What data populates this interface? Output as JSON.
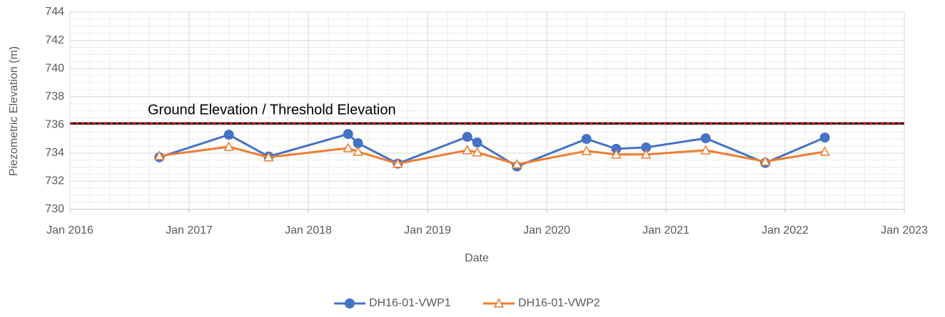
{
  "chart_data": {
    "type": "line",
    "x_label": "Date",
    "y_label": "Piezometric Elevation (m)",
    "x": [
      "2016-10",
      "2017-05",
      "2017-09",
      "2018-05",
      "2018-06",
      "2018-10",
      "2019-05",
      "2019-06",
      "2019-10",
      "2020-05",
      "2020-08",
      "2020-11",
      "2021-05",
      "2021-11",
      "2022-05"
    ],
    "series": [
      {
        "name": "DH16-01-VWP1",
        "color": "#4472c4",
        "marker": "circle",
        "values": [
          733.7,
          735.3,
          733.75,
          735.35,
          734.7,
          733.25,
          735.15,
          734.75,
          733.05,
          735.0,
          734.3,
          734.4,
          735.05,
          733.3,
          735.1
        ]
      },
      {
        "name": "DH16-01-VWP2",
        "color": "#ed7d31",
        "marker": "triangle",
        "values": [
          733.8,
          734.45,
          733.7,
          734.35,
          734.1,
          733.25,
          734.2,
          734.05,
          733.2,
          734.15,
          733.9,
          733.9,
          734.2,
          733.4,
          734.1
        ]
      }
    ],
    "threshold": {
      "value": 736.1,
      "label": "Ground Elevation / Threshold Elevation"
    },
    "xlim": [
      "2016-01",
      "2023-01"
    ],
    "xticks": [
      {
        "value": "2016-01",
        "label": "Jan 2016"
      },
      {
        "value": "2017-01",
        "label": "Jan 2017"
      },
      {
        "value": "2018-01",
        "label": "Jan 2018"
      },
      {
        "value": "2019-01",
        "label": "Jan 2019"
      },
      {
        "value": "2020-01",
        "label": "Jan 2020"
      },
      {
        "value": "2021-01",
        "label": "Jan 2021"
      },
      {
        "value": "2022-01",
        "label": "Jan 2022"
      },
      {
        "value": "2023-01",
        "label": "Jan 2023"
      }
    ],
    "ylim": [
      730,
      744
    ],
    "yticks": [
      730,
      732,
      734,
      736,
      738,
      740,
      742,
      744
    ],
    "grid": true,
    "legend": "bottom"
  }
}
